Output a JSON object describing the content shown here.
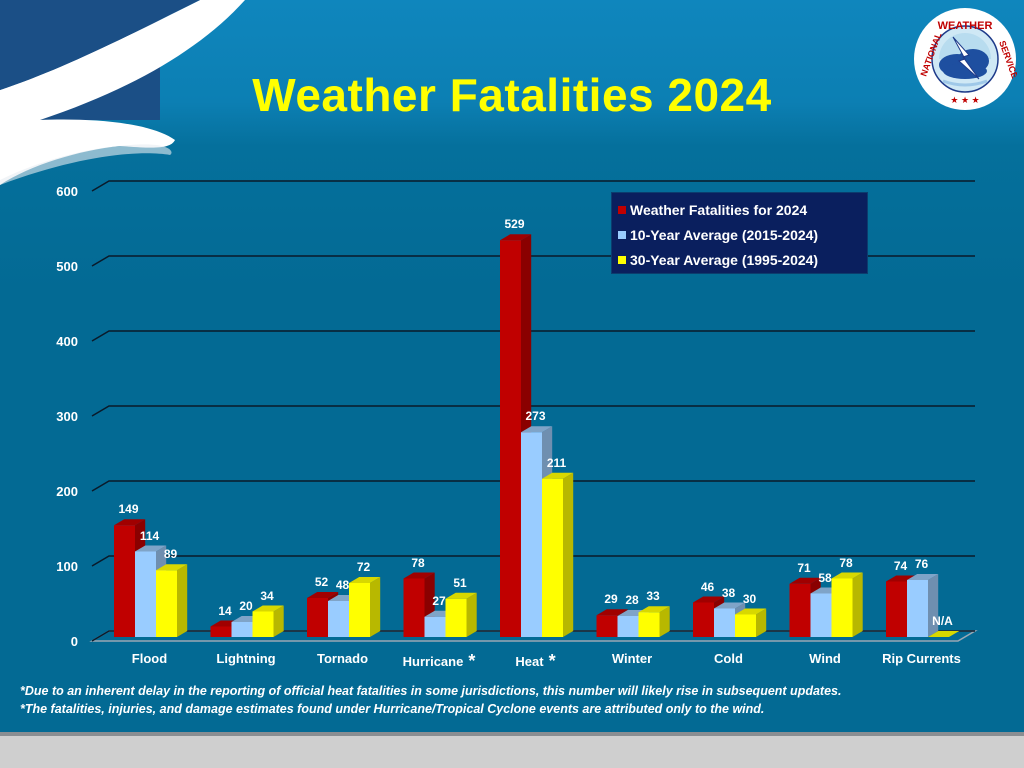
{
  "slide": {
    "title": "Weather Fatalities 2024",
    "logo": {
      "text_top": "NATIONAL WEATHER SERVICE",
      "icon": "nws-logo-icon"
    }
  },
  "colors": {
    "series_2024": "#c00000",
    "series_10yr": "#99ccff",
    "series_30yr": "#ffff00",
    "legend_bg": "#0a1f5e",
    "title": "#ffff00",
    "background": "#036a94"
  },
  "legend": {
    "items": [
      {
        "label": "Weather Fatalities for 2024",
        "color": "#c00000"
      },
      {
        "label": "10-Year Average (2015-2024)",
        "color": "#99ccff"
      },
      {
        "label": "30-Year Average (1995-2024)",
        "color": "#ffff00"
      }
    ]
  },
  "axis": {
    "y_ticks": [
      "0",
      "100",
      "200",
      "300",
      "400",
      "500",
      "600"
    ]
  },
  "categories": [
    {
      "label": "Flood",
      "star": ""
    },
    {
      "label": "Lightning",
      "star": ""
    },
    {
      "label": "Tornado",
      "star": ""
    },
    {
      "label": "Hurricane",
      "star": "*"
    },
    {
      "label": "Heat",
      "star": "*"
    },
    {
      "label": "Winter",
      "star": ""
    },
    {
      "label": "Cold",
      "star": ""
    },
    {
      "label": "Wind",
      "star": ""
    },
    {
      "label": "Rip Currents",
      "star": ""
    }
  ],
  "notes": [
    "*Due to an inherent delay in the reporting of official heat fatalities in some jurisdictions, this number will likely rise in subsequent updates.",
    "*The fatalities, injuries, and damage estimates  found under Hurricane/Tropical Cyclone events are attributed only to the wind."
  ],
  "chart_data": {
    "type": "bar",
    "title": "Weather Fatalities 2024",
    "xlabel": "",
    "ylabel": "",
    "ylim": [
      0,
      600
    ],
    "y_ticks": [
      0,
      100,
      200,
      300,
      400,
      500,
      600
    ],
    "grid": true,
    "legend_position": "top-right (inside plot)",
    "style": "3D clustered column",
    "categories": [
      "Flood",
      "Lightning",
      "Tornado",
      "Hurricane*",
      "Heat*",
      "Winter",
      "Cold",
      "Wind",
      "Rip Currents"
    ],
    "series": [
      {
        "name": "Weather Fatalities for 2024",
        "color": "#c00000",
        "values": [
          149,
          14,
          52,
          78,
          529,
          29,
          46,
          71,
          74
        ]
      },
      {
        "name": "10-Year Average (2015-2024)",
        "color": "#99ccff",
        "values": [
          114,
          20,
          48,
          27,
          273,
          28,
          38,
          58,
          76
        ]
      },
      {
        "name": "30-Year Average (1995-2024)",
        "color": "#ffff00",
        "values": [
          89,
          34,
          72,
          51,
          211,
          33,
          30,
          78,
          null
        ]
      }
    ],
    "value_labels": [
      [
        "149",
        "14",
        "52",
        "78",
        "529",
        "29",
        "46",
        "71",
        "74"
      ],
      [
        "114",
        "20",
        "48",
        "27",
        "273",
        "28",
        "38",
        "58",
        "76"
      ],
      [
        "89",
        "34",
        "72",
        "51",
        "211",
        "33",
        "30",
        "78",
        "N/A"
      ]
    ],
    "annotations": [
      "*Due to an inherent delay in the reporting of official heat fatalities in some jurisdictions, this number will likely rise in subsequent updates.",
      "*The fatalities, injuries, and damage estimates found under Hurricane/Tropical Cyclone events are attributed only to the wind."
    ]
  }
}
